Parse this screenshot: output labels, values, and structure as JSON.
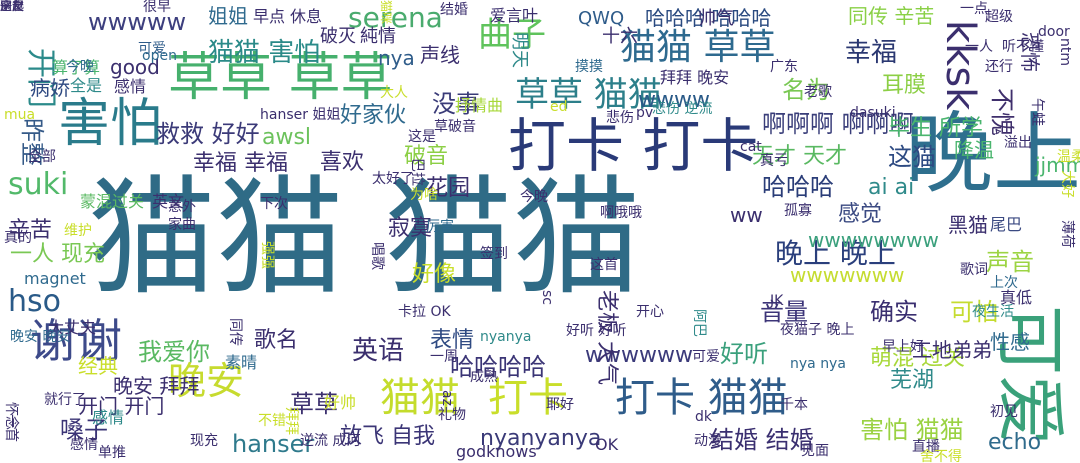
{
  "words": [
    {
      "text": "猫猫 猫猫",
      "color": "#2f6b86"
    },
    {
      "text": "晚上",
      "color": "#2e6f8e"
    },
    {
      "text": "可爱",
      "color": "#3aa17a"
    },
    {
      "text": "打卡 打卡",
      "color": "#2a3a78"
    },
    {
      "text": "草草 草草",
      "color": "#46b06d"
    },
    {
      "text": "害怕",
      "color": "#2a7b8b"
    },
    {
      "text": "谢谢",
      "color": "#3d4a8a"
    },
    {
      "text": "猫猫 草草",
      "color": "#2e6a8f"
    },
    {
      "text": "曲子",
      "color": "#5fc35c"
    },
    {
      "text": "kksk",
      "color": "#3b2f6e"
    },
    {
      "text": "草草 猫猫",
      "color": "#2c7f8a"
    },
    {
      "text": "猫猫",
      "color": "#c4dc2c"
    },
    {
      "text": "打卡",
      "color": "#c9de2a"
    },
    {
      "text": "打卡 猫猫",
      "color": "#2f5c8a"
    },
    {
      "text": "晚安",
      "color": "#c7db2f"
    },
    {
      "text": "serena",
      "color": "#4aab6e"
    },
    {
      "text": "猫猫 害怕",
      "color": "#2a8a88"
    },
    {
      "text": "wwwww",
      "color": "#3d3f7e"
    },
    {
      "text": "姐姐",
      "color": "#2f6a8e"
    },
    {
      "text": "哈哈哈 哈哈哈",
      "color": "#2a4a80"
    },
    {
      "text": "同传 辛苦",
      "color": "#8ad046"
    },
    {
      "text": "幸福",
      "color": "#2b3872"
    },
    {
      "text": "开门",
      "color": "#2b8a8a"
    },
    {
      "text": "昨整",
      "color": "#355a88"
    },
    {
      "text": "suki",
      "color": "#52b96a"
    },
    {
      "text": "救救 好好",
      "color": "#3b3a78"
    },
    {
      "text": "没事",
      "color": "#3a3b78"
    },
    {
      "text": "名为",
      "color": "#7ac854"
    },
    {
      "text": "啊啊啊 啊啊啊",
      "color": "#3a3e7a"
    },
    {
      "text": "不愧",
      "color": "#3f2f6c"
    },
    {
      "text": "哈哈哈",
      "color": "#2a3d78"
    },
    {
      "text": "这猫",
      "color": "#2d4a82"
    },
    {
      "text": "hso",
      "color": "#2a5a88"
    },
    {
      "text": "晚上 晚上",
      "color": "#2a3f7c"
    },
    {
      "text": "英语",
      "color": "#3b2f6e"
    },
    {
      "text": "我爱你",
      "color": "#5ab962"
    },
    {
      "text": "音量",
      "color": "#3c3478"
    },
    {
      "text": "确实",
      "color": "#3a2f70"
    },
    {
      "text": "可怕",
      "color": "#c5dc30"
    },
    {
      "text": "声音",
      "color": "#9cd443"
    },
    {
      "text": "哈哈哈哈",
      "color": "#3b3576"
    },
    {
      "text": "wwwwww",
      "color": "#3b3a7a"
    },
    {
      "text": "好听",
      "color": "#3aa07c"
    },
    {
      "text": "放飞 自我",
      "color": "#3b3576"
    },
    {
      "text": "hanser",
      "color": "#2f7a8c"
    },
    {
      "text": "nyanyanya",
      "color": "#3a3a78"
    },
    {
      "text": "结婚 结婚",
      "color": "#3a2f70"
    },
    {
      "text": "害怕 猫猫",
      "color": "#9ad243"
    },
    {
      "text": "嗓子",
      "color": "#3b3476"
    },
    {
      "text": "草草",
      "color": "#3b2f6e"
    },
    {
      "text": "echo",
      "color": "#2f6b8c"
    },
    {
      "text": "感觉",
      "color": "#3b4a82"
    },
    {
      "text": "寂寞",
      "color": "#3b2f6e"
    },
    {
      "text": "喜欢",
      "color": "#3b2f6e"
    },
    {
      "text": "破音",
      "color": "#8ccf45"
    },
    {
      "text": "花园",
      "color": "#3b2f6e"
    },
    {
      "text": "好家伙",
      "color": "#2f6a8e"
    },
    {
      "text": "awsl",
      "color": "#6cc25c"
    },
    {
      "text": "幸福 幸福",
      "color": "#3b2f6e"
    },
    {
      "text": "天才 天才",
      "color": "#5ab962"
    },
    {
      "text": "毕生 所学",
      "color": "#4ab56e"
    },
    {
      "text": "耳膜",
      "color": "#8ccf45"
    },
    {
      "text": "ai ai",
      "color": "#2f8a8a"
    },
    {
      "text": "辛苦",
      "color": "#3b2f6e"
    },
    {
      "text": "好像",
      "color": "#c9de2a"
    },
    {
      "text": "一人 现充",
      "color": "#7ac854"
    },
    {
      "text": "歌名",
      "color": "#3b2f6e"
    },
    {
      "text": "表情",
      "color": "#2f4a82"
    },
    {
      "text": "ww",
      "color": "#3b2f6e"
    },
    {
      "text": "萌混 过关",
      "color": "#a8d83a"
    },
    {
      "text": "芜湖",
      "color": "#2f8a8a"
    },
    {
      "text": "wwww",
      "color": "#2a5a88"
    },
    {
      "text": "wwwwwwww",
      "color": "#3aa07c"
    },
    {
      "text": "wwwwwww",
      "color": "#c5dc30"
    },
    {
      "text": "good",
      "color": "#3b2f6e"
    },
    {
      "text": "nya",
      "color": "#2f5c8a"
    },
    {
      "text": "病娇",
      "color": "#2f4a82"
    },
    {
      "text": "经典",
      "color": "#c9de2a"
    },
    {
      "text": "工地弟弟",
      "color": "#3b2f6e"
    },
    {
      "text": "性感",
      "color": "#2f6a8e"
    },
    {
      "text": "开门 开门",
      "color": "#3b2f6e"
    },
    {
      "text": "恐怖",
      "color": "#3b2f6e"
    },
    {
      "text": "晚安 拜拜",
      "color": "#3b2f6e"
    },
    {
      "text": "真低",
      "color": "#3b2f6e"
    },
    {
      "text": "尾巴",
      "color": "#3b4a82"
    },
    {
      "text": "黑猫",
      "color": "#3b2f6e"
    },
    {
      "text": "降温",
      "color": "#4ab56e"
    },
    {
      "text": "jjmm",
      "color": "#4ab56e"
    },
    {
      "text": "声线",
      "color": "#3b2f6e"
    },
    {
      "text": "老板 大气",
      "color": "#3b2f6e"
    },
    {
      "text": "感情",
      "color": "#2f8a8a"
    },
    {
      "text": "magnet",
      "color": "#2f6a8e"
    },
    {
      "text": "大丈夫",
      "color": "#3b2f6e"
    },
    {
      "text": "素晴",
      "color": "#2f6a8e"
    },
    {
      "text": "蒙混过关",
      "color": "#5ab962"
    },
    {
      "text": "英文",
      "color": "#3b2f6e"
    },
    {
      "text": "抒情曲",
      "color": "#a8d83a"
    },
    {
      "text": "拜拜 晚安",
      "color": "#3b2f6e"
    },
    {
      "text": "破灭",
      "color": "#3b2f6e"
    },
    {
      "text": "純情",
      "color": "#3b2f6e"
    },
    {
      "text": "早点",
      "color": "#3b2f6e"
    },
    {
      "text": "休息",
      "color": "#3b2f6e"
    },
    {
      "text": "很早",
      "color": "#3b2f6e"
    },
    {
      "text": "爱言叶",
      "color": "#3b2f6e"
    },
    {
      "text": "QWQ",
      "color": "#2f5c8a"
    },
    {
      "text": "十六",
      "color": "#3b2f6e"
    },
    {
      "text": "帅气",
      "color": "#3b2f6e"
    },
    {
      "text": "明天",
      "color": "#2f8a8a"
    },
    {
      "text": "可爱",
      "color": "#2f5c8a"
    },
    {
      "text": "广东",
      "color": "#3b2f6e"
    },
    {
      "text": "一人",
      "color": "#3b2f6e"
    },
    {
      "text": "还行",
      "color": "#3b2f6e"
    },
    {
      "text": "超级",
      "color": "#3b2f6e"
    },
    {
      "text": "door",
      "color": "#3b2f6e"
    },
    {
      "text": "听不懂",
      "color": "#3b2f6e"
    },
    {
      "text": "结婚",
      "color": "#3b2f6e"
    },
    {
      "text": "一点",
      "color": "#3b2f6e"
    },
    {
      "text": "算了算",
      "color": "#4ab56e"
    },
    {
      "text": "全是",
      "color": "#2f8a8a"
    },
    {
      "text": "感情",
      "color": "#3b2f6e"
    },
    {
      "text": "今晚",
      "color": "#2f6a8e"
    },
    {
      "text": "摸摸",
      "color": "#2f6a8e"
    },
    {
      "text": "大人",
      "color": "#c9de2a"
    },
    {
      "text": "悲伤 逆流",
      "color": "#2f8a8a"
    },
    {
      "text": "老歌",
      "color": "#3b2f6e"
    },
    {
      "text": "午蛙",
      "color": "#3b2f6e"
    },
    {
      "text": "hanser 姐姐",
      "color": "#3b2f6e"
    },
    {
      "text": "草破音",
      "color": "#3b2f6e"
    },
    {
      "text": "这是",
      "color": "#3b2f6e"
    },
    {
      "text": "悲伤",
      "color": "#3b2f6e"
    },
    {
      "text": "cat",
      "color": "#3b2f6e"
    },
    {
      "text": "真亏",
      "color": "#3b2f6e"
    },
    {
      "text": "溢出",
      "color": "#3b2f6e"
    },
    {
      "text": "大好",
      "color": "#c9de2a"
    },
    {
      "text": "温柔",
      "color": "#c9de2a"
    },
    {
      "text": "唱歌",
      "color": "#3b2f6e"
    },
    {
      "text": "为啥",
      "color": "#c9de2a"
    },
    {
      "text": "厉害",
      "color": "#2f6a8e"
    },
    {
      "text": "维护",
      "color": "#c9de2a"
    },
    {
      "text": "意外",
      "color": "#3b2f6e"
    },
    {
      "text": "家曲",
      "color": "#3b2f6e"
    },
    {
      "text": "孤寡",
      "color": "#3b2f6e"
    },
    {
      "text": "怀念",
      "color": "#3b2f6e"
    },
    {
      "text": "真的",
      "color": "#3b2f6e"
    },
    {
      "text": "签到",
      "color": "#3b2f6e"
    },
    {
      "text": "歌词",
      "color": "#3b2f6e"
    },
    {
      "text": "上次",
      "color": "#2f6a8e"
    },
    {
      "text": "同传",
      "color": "#3b2f6e"
    },
    {
      "text": "拜拜",
      "color": "#c9de2a"
    },
    {
      "text": "晚安 晚安",
      "color": "#2f6a8e"
    },
    {
      "text": "好帅",
      "color": "#c9de2a"
    },
    {
      "text": "不错",
      "color": "#c9de2a"
    },
    {
      "text": "卡拉 OK",
      "color": "#3b2f6e"
    },
    {
      "text": "好听 好听",
      "color": "#3b2f6e"
    },
    {
      "text": "夜猫子 晚上",
      "color": "#3b2f6e"
    },
    {
      "text": "nya nya",
      "color": "#2f6a8e"
    },
    {
      "text": "nyanya",
      "color": "#2f8a8a"
    },
    {
      "text": "一周",
      "color": "#3b2f6e"
    },
    {
      "text": "千本",
      "color": "#3b2f6e"
    },
    {
      "text": "耶好",
      "color": "#3b2f6e"
    },
    {
      "text": "逆流 成河",
      "color": "#3b2f6e"
    },
    {
      "text": "现充",
      "color": "#3b2f6e"
    },
    {
      "text": "感情",
      "color": "#3b2f6e"
    },
    {
      "text": "单推",
      "color": "#3b2f6e"
    },
    {
      "text": "OK",
      "color": "#3b2f6e"
    },
    {
      "text": "godknows",
      "color": "#3b2f6e"
    },
    {
      "text": "dk",
      "color": "#3b2f6e"
    },
    {
      "text": "动漫",
      "color": "#3b2f6e"
    },
    {
      "text": "见面",
      "color": "#3b2f6e"
    },
    {
      "text": "直播",
      "color": "#3b2f6e"
    },
    {
      "text": "初见",
      "color": "#3b2f6e"
    },
    {
      "text": "一首",
      "color": "#3b2f6e"
    },
    {
      "text": "就行了",
      "color": "#3b2f6e"
    },
    {
      "text": "这首",
      "color": "#3b2f6e"
    },
    {
      "text": "pv",
      "color": "#3b2f6e"
    },
    {
      "text": "ed",
      "color": "#c9de2a"
    },
    {
      "text": "mua",
      "color": "#c9de2a"
    },
    {
      "text": "open",
      "color": "#2f6a8e"
    },
    {
      "text": "可爱",
      "color": "#3b2f6e"
    },
    {
      "text": "sc",
      "color": "#3b2f6e"
    },
    {
      "text": "JK",
      "color": "#3b2f6e"
    },
    {
      "text": "阿巴",
      "color": "#2f8a8a"
    },
    {
      "text": "开心",
      "color": "#3b2f6e"
    },
    {
      "text": "成熟",
      "color": "#3b2f6e"
    },
    {
      "text": "夜生活",
      "color": "#2f8a8a"
    },
    {
      "text": "早上好",
      "color": "#3b2f6e"
    },
    {
      "text": "舍不得",
      "color": "#c9de2a"
    },
    {
      "text": "薄荷",
      "color": "#3b2f6e"
    },
    {
      "text": "猫咪",
      "color": "#c9de2a"
    },
    {
      "text": "强强",
      "color": "#c9de2a"
    },
    {
      "text": "下次",
      "color": "#3b2f6e"
    },
    {
      "text": "巴拉",
      "color": "#3b2f6e"
    },
    {
      "text": "礼物",
      "color": "#3b2f6e"
    },
    {
      "text": "太好了",
      "color": "#3b2f6e"
    },
    {
      "text": "啊哦哦",
      "color": "#3b2f6e"
    },
    {
      "text": "全部",
      "color": "#3b2f6e"
    },
    {
      "text": "az",
      "color": "#3b2f6e"
    },
    {
      "text": "ntm",
      "color": "#3b2f6e"
    },
    {
      "text": "今晚",
      "color": "#3b2f6e"
    },
    {
      "text": "dasuki",
      "color": "#3b2f6e"
    },
    {
      "text": "宝贝",
      "color": "#3b2f6e"
    },
    {
      "text": "这个",
      "color": "#3b2f6e"
    },
    {
      "text": "朋友",
      "color": "#3b2f6e"
    },
    {
      "text": "一起",
      "color": "#3b2f6e"
    }
  ]
}
